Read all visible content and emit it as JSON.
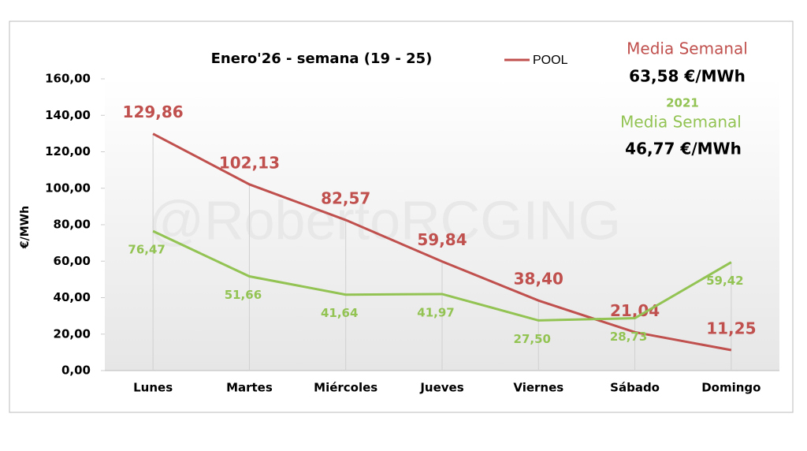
{
  "chart_data": {
    "type": "line",
    "title": "Enero'26 - semana (19 - 25)",
    "y_label": "€/MWh",
    "watermark": "@RobertoRCGING",
    "categories": [
      "Lunes",
      "Martes",
      "Miércoles",
      "Jueves",
      "Viernes",
      "Sábado",
      "Domingo"
    ],
    "series": [
      {
        "name": "POOL",
        "color": "#c0504d",
        "values": [
          129.86,
          102.13,
          82.57,
          59.84,
          38.4,
          21.04,
          11.25
        ],
        "value_labels": [
          "129,86",
          "102,13",
          "82,57",
          "59,84",
          "38,40",
          "21,04",
          "11,25"
        ]
      },
      {
        "name": "2021",
        "color": "#92c353",
        "values": [
          76.47,
          51.66,
          41.64,
          41.97,
          27.5,
          28.73,
          59.42
        ],
        "value_labels": [
          "76,47",
          "51,66",
          "41,64",
          "41,97",
          "27,50",
          "28,73",
          "59,42"
        ]
      }
    ],
    "ylim": [
      0,
      160
    ],
    "yticks": [
      {
        "value": 0,
        "label": "0,00"
      },
      {
        "value": 20,
        "label": "20,00"
      },
      {
        "value": 40,
        "label": "40,00"
      },
      {
        "value": 60,
        "label": "60,00"
      },
      {
        "value": 80,
        "label": "80,00"
      },
      {
        "value": 100,
        "label": "100,00"
      },
      {
        "value": 120,
        "label": "120,00"
      },
      {
        "value": 140,
        "label": "140,00"
      },
      {
        "value": 160,
        "label": "160,00"
      }
    ],
    "annotations": [
      "Media Semanal",
      "63,58 €/MWh",
      "Media Semanal",
      "46,77 €/MWh"
    ]
  }
}
